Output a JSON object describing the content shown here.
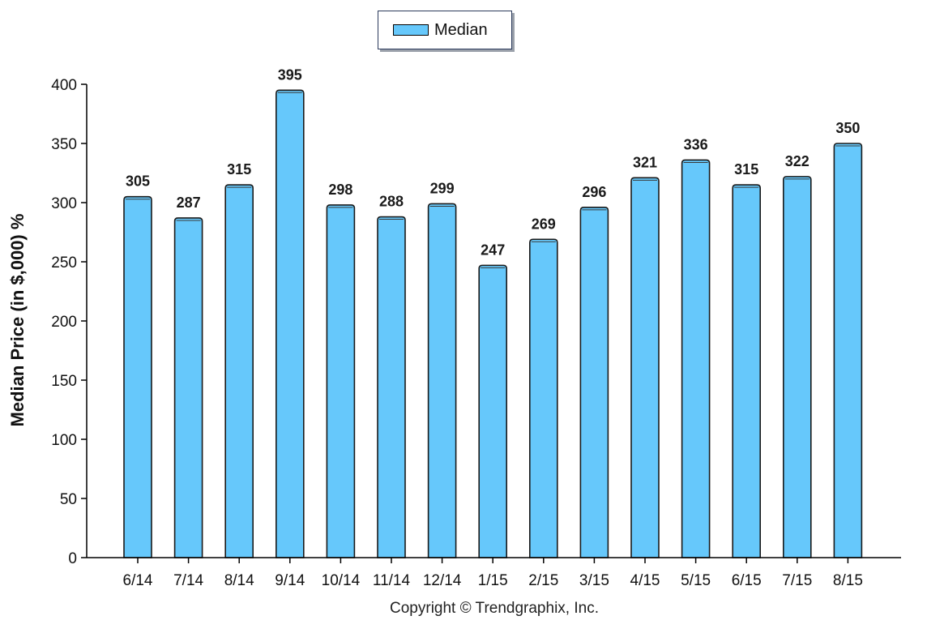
{
  "chart_data": {
    "type": "bar",
    "categories": [
      "6/14",
      "7/14",
      "8/14",
      "9/14",
      "10/14",
      "11/14",
      "12/14",
      "1/15",
      "2/15",
      "3/15",
      "4/15",
      "5/15",
      "6/15",
      "7/15",
      "8/15"
    ],
    "series": [
      {
        "name": "Median",
        "values": [
          305,
          287,
          315,
          395,
          298,
          288,
          299,
          247,
          269,
          296,
          321,
          336,
          315,
          322,
          350
        ]
      }
    ],
    "ylabel": "Median Price (in $,000) %",
    "ylim": [
      0,
      400
    ],
    "yticks": [
      0,
      50,
      100,
      150,
      200,
      250,
      300,
      350,
      400
    ],
    "data_labels": [
      "305",
      "287",
      "315",
      "395",
      "298",
      "288",
      "299",
      "247",
      "269",
      "296",
      "321",
      "336",
      "315",
      "322",
      "350"
    ],
    "legend": {
      "entries": [
        "Median"
      ],
      "placement": "top-center"
    },
    "grid": false,
    "colors": {
      "bar": "#66c8fb",
      "bar_stroke": "#1a1a1a"
    }
  },
  "footer": {
    "copyright": "Copyright © Trendgraphix, Inc."
  }
}
